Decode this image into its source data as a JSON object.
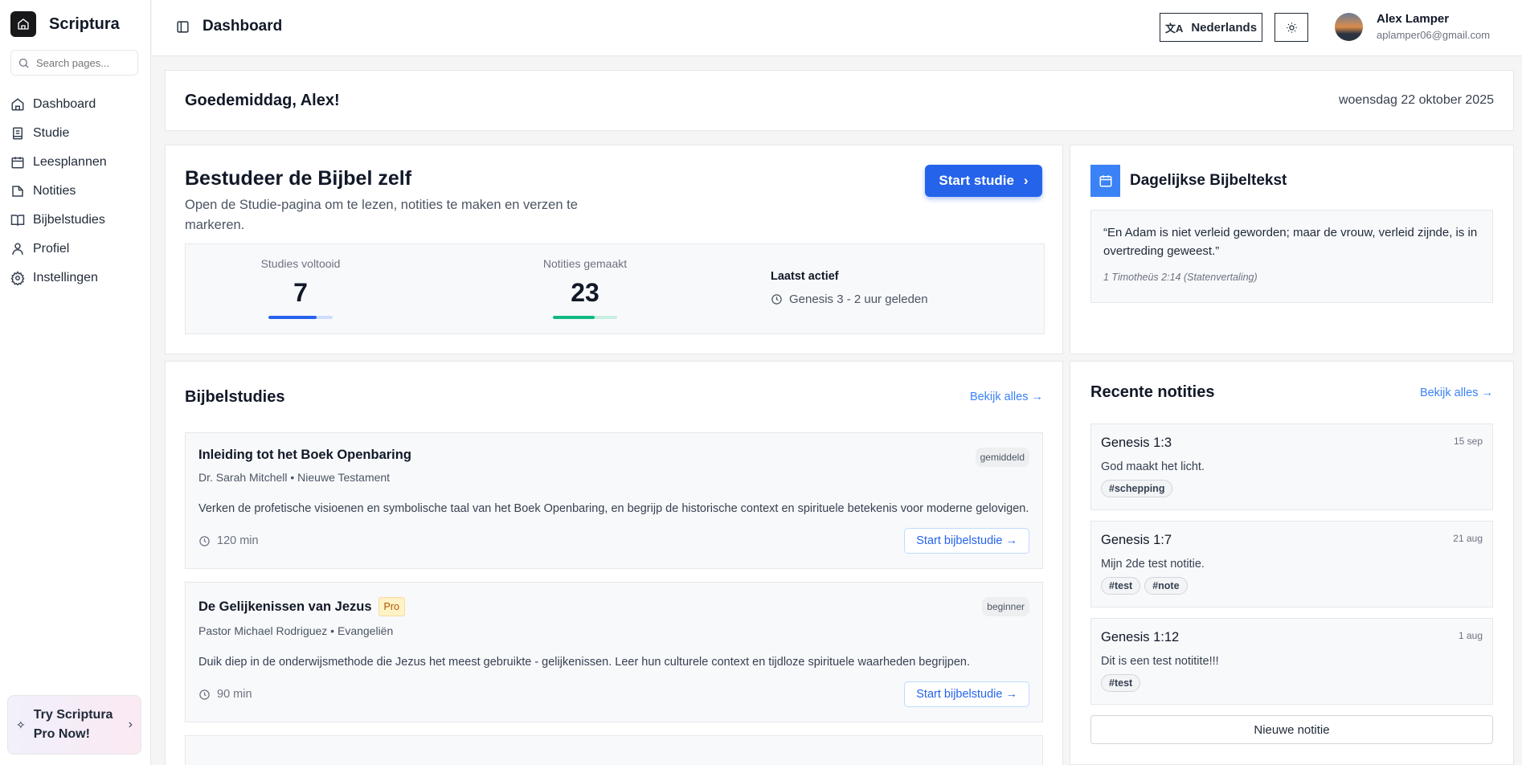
{
  "sidebar": {
    "brand": "Scriptura",
    "search_placeholder": "Search pages...",
    "items": [
      {
        "label": "Dashboard",
        "icon": "home-icon"
      },
      {
        "label": "Studie",
        "icon": "document-icon"
      },
      {
        "label": "Leesplannen",
        "icon": "calendar-icon"
      },
      {
        "label": "Notities",
        "icon": "note-icon"
      },
      {
        "label": "Bijbelstudies",
        "icon": "book-open-icon"
      },
      {
        "label": "Profiel",
        "icon": "user-icon"
      },
      {
        "label": "Instellingen",
        "icon": "gear-icon"
      }
    ],
    "promo": "Try Scriptura Pro Now!"
  },
  "header": {
    "title": "Dashboard",
    "language": "Nederlands",
    "user": {
      "name": "Alex Lamper",
      "email": "aplamper06@gmail.com"
    }
  },
  "greeting": {
    "text": "Goedemiddag, Alex!",
    "date": "woensdag 22 oktober 2025"
  },
  "study": {
    "title": "Bestudeer de Bijbel zelf",
    "subtitle": "Open de Studie-pagina om te lezen, notities te maken en verzen te markeren.",
    "button": "Start studie",
    "stats": [
      {
        "label": "Studies voltooid",
        "value": "7",
        "progress": 0.75,
        "color": "#2563eb",
        "track": "#cfdcfb"
      },
      {
        "label": "Notities gemaakt",
        "value": "23",
        "progress": 0.65,
        "color": "#10b981",
        "track": "#c9efe0"
      }
    ],
    "last_active": {
      "label": "Laatst actief",
      "value": "Genesis 3 - 2 uur geleden"
    }
  },
  "daily": {
    "title": "Dagelijkse Bijbeltekst",
    "verse": "“En Adam is niet verleid geworden; maar de vrouw, verleid zijnde, is in overtreding geweest.”",
    "reference": "1 Timotheüs 2:14 (Statenvertaling)"
  },
  "studies": {
    "title": "Bijbelstudies",
    "view_all": "Bekijk alles →",
    "items": [
      {
        "title": "Inleiding tot het Boek Openbaring",
        "pro": null,
        "level": "gemiddeld",
        "meta": "Dr. Sarah Mitchell • Nieuwe Testament",
        "description": "Verken de profetische visioenen en symbolische taal van het Boek Openbaring, en begrijp de historische context en spirituele betekenis voor moderne gelovigen.",
        "duration": "120 min",
        "button": "Start bijbelstudie →"
      },
      {
        "title": "De Gelijkenissen van Jezus",
        "pro": "Pro",
        "level": "beginner",
        "meta": "Pastor Michael Rodriguez • Evangeliën",
        "description": "Duik diep in de onderwijsmethode die Jezus het meest gebruikte - gelijkenissen. Leer hun culturele context en tijdloze spirituele waarheden begrijpen.",
        "duration": "90 min",
        "button": "Start bijbelstudie →"
      }
    ]
  },
  "notes": {
    "title": "Recente notities",
    "view_all": "Bekijk alles →",
    "items": [
      {
        "title": "Genesis 1:3",
        "date": "15 sep",
        "text": "God maakt het licht.",
        "tags": [
          "#schepping"
        ]
      },
      {
        "title": "Genesis 1:7",
        "date": "21 aug",
        "text": "Mijn 2de test notitie.",
        "tags": [
          "#test",
          "#note"
        ]
      },
      {
        "title": "Genesis 1:12",
        "date": "1 aug",
        "text": "Dit is een test notitite!!!",
        "tags": [
          "#test"
        ]
      }
    ],
    "new_button": "Nieuwe notitie"
  }
}
